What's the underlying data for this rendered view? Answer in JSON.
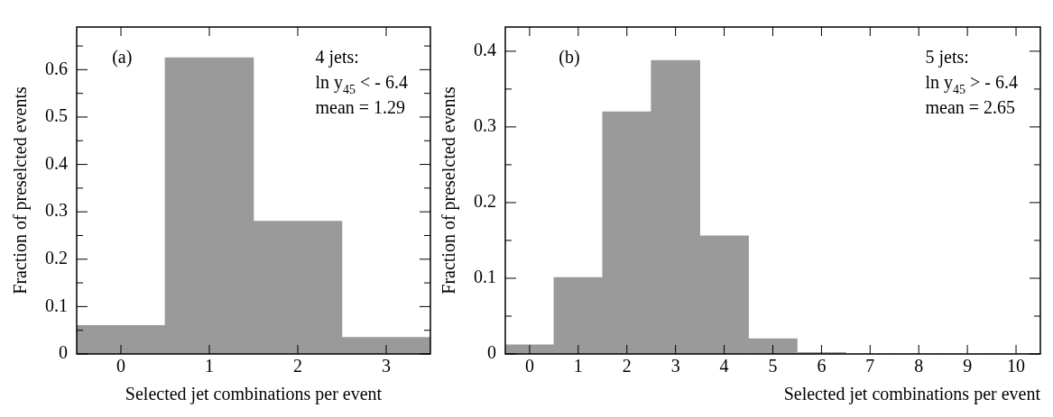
{
  "chart_data": [
    {
      "type": "histogram",
      "xlabel": "Selected jet combinations per event",
      "ylabel": "Fraction of preselcted events",
      "bins": [
        -0.5,
        0.5,
        1.5,
        2.5,
        3.5
      ],
      "values": [
        0.06,
        0.625,
        0.28,
        0.035
      ],
      "color": "#9a9a9a",
      "xlim": [
        -0.5,
        3.5
      ],
      "xticks": [
        0,
        1,
        2,
        3
      ],
      "ylim": [
        0,
        0.69
      ],
      "yticks": [
        0,
        {
          "value": 0.05,
          "label": null
        },
        0.1,
        {
          "value": 0.15,
          "label": null
        },
        0.2,
        {
          "value": 0.25,
          "label": null
        },
        0.3,
        {
          "value": 0.35,
          "label": null
        },
        0.4,
        {
          "value": 0.45,
          "label": null
        },
        0.5,
        {
          "value": 0.55,
          "label": null
        },
        0.6,
        {
          "value": 0.65,
          "label": null
        }
      ],
      "grid": false,
      "annotations": [
        "(a)",
        "4 jets:",
        "ln y$_{45}$ < - 6.4",
        "mean = 1.29"
      ]
    },
    {
      "type": "histogram",
      "xlabel": "Selected jet combinations per event",
      "ylabel": "Fraction of preselcted events",
      "bins": [
        -0.5,
        0.5,
        1.5,
        2.5,
        3.5,
        4.5,
        5.5,
        6.5,
        7.5,
        8.5,
        9.5,
        10.5
      ],
      "values": [
        0.012,
        0.101,
        0.32,
        0.388,
        0.156,
        0.02,
        0.002,
        0,
        0,
        0,
        0
      ],
      "color": "#9a9a9a",
      "xlim": [
        -0.5,
        10.5
      ],
      "xticks": [
        0,
        1,
        2,
        3,
        4,
        5,
        6,
        7,
        8,
        9,
        10
      ],
      "ylim": [
        0,
        0.432
      ],
      "yticks": [
        0,
        {
          "value": 0.05,
          "label": null
        },
        0.1,
        {
          "value": 0.15,
          "label": null
        },
        0.2,
        {
          "value": 0.25,
          "label": null
        },
        0.3,
        {
          "value": 0.35,
          "label": null
        },
        0.4
      ],
      "grid": false,
      "annotations": [
        "(b)",
        "5 jets:",
        "ln y$_{45}$ > - 6.4",
        "mean = 2.65"
      ]
    }
  ]
}
